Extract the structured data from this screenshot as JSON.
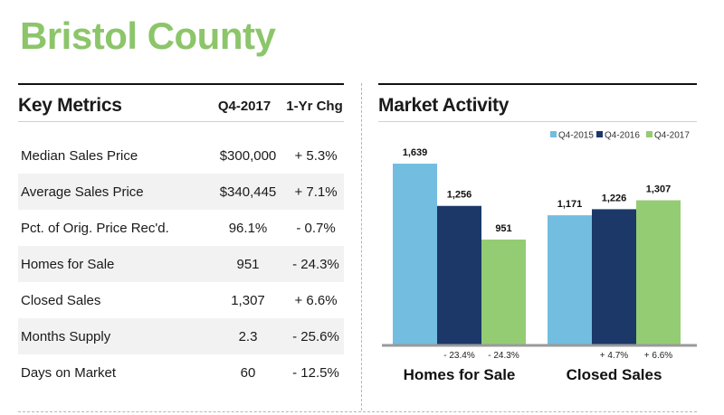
{
  "page": {
    "title": "Bristol County"
  },
  "key_metrics": {
    "title": "Key Metrics",
    "col_period": "Q4-2017",
    "col_change": "1-Yr Chg",
    "rows": [
      {
        "label": "Median Sales Price",
        "value": "$300,000",
        "change": "+ 5.3%"
      },
      {
        "label": "Average Sales Price",
        "value": "$340,445",
        "change": "+ 7.1%"
      },
      {
        "label": "Pct. of Orig. Price Rec'd.",
        "value": "96.1%",
        "change": "- 0.7%"
      },
      {
        "label": "Homes for Sale",
        "value": "951",
        "change": "- 24.3%"
      },
      {
        "label": "Closed Sales",
        "value": "1,307",
        "change": "+ 6.6%"
      },
      {
        "label": "Months Supply",
        "value": "2.3",
        "change": "- 25.6%"
      },
      {
        "label": "Days on Market",
        "value": "60",
        "change": "- 12.5%"
      }
    ]
  },
  "market_activity": {
    "title": "Market Activity"
  },
  "chart_data": {
    "type": "bar",
    "title": "Market Activity",
    "categories": [
      "Homes for Sale",
      "Closed Sales"
    ],
    "series": [
      {
        "name": "Q4-2015",
        "values": [
          1639,
          1171
        ],
        "labels": [
          "1,639",
          "1,171"
        ],
        "color": "#73bde0"
      },
      {
        "name": "Q4-2016",
        "values": [
          1256,
          1226
        ],
        "labels": [
          "1,256",
          "1,226"
        ],
        "color": "#1b3868"
      },
      {
        "name": "Q4-2017",
        "values": [
          951,
          1307
        ],
        "labels": [
          "951",
          "1,307"
        ],
        "color": "#94cc74"
      }
    ],
    "changes": [
      [
        "",
        "- 23.4%",
        "- 24.3%"
      ],
      [
        "",
        "+ 4.7%",
        "+ 6.6%"
      ]
    ],
    "legend_position": "top-right",
    "grid": false
  }
}
